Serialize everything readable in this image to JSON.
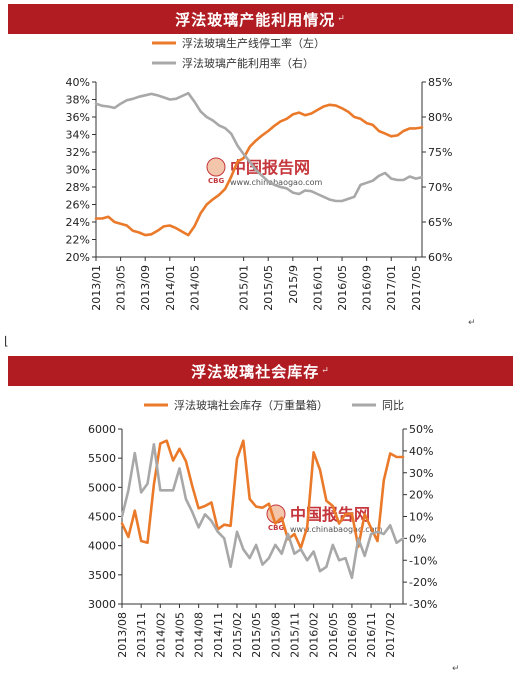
{
  "colors": {
    "orange": "#ea7a2a",
    "gray": "#a8a8a8",
    "title_bg": "#b01c21",
    "watermark": "#c0262b"
  },
  "watermark": {
    "cn": "中国报告网",
    "url": "www.chinabaogao.com",
    "logo": "CBG"
  },
  "charts": [
    {
      "title": "浮法玻璃产能利用情况",
      "legend_position": "top-center",
      "grid": false,
      "x_tick_labels": [
        "2013/01",
        "2013/05",
        "2013/09",
        "2014/01",
        "2014/05",
        "2015/01",
        "2015/05",
        "2015/9",
        "2016/01",
        "2016/05",
        "2016/09",
        "2017/01",
        "2017/05"
      ],
      "left_axis": {
        "ylim": [
          20,
          40
        ],
        "ticks": [
          "20%",
          "22%",
          "24%",
          "26%",
          "28%",
          "30%",
          "32%",
          "34%",
          "36%",
          "38%",
          "40%"
        ]
      },
      "right_axis": {
        "ylim": [
          60,
          85
        ],
        "ticks": [
          "60%",
          "65%",
          "70%",
          "75%",
          "80%",
          "85%"
        ]
      }
    },
    {
      "title": "浮法玻璃社会库存",
      "legend_position": "top-center",
      "grid": false,
      "x_tick_labels": [
        "2013/08",
        "2013/11",
        "2014/02",
        "2014/05",
        "2014/08",
        "2014/11",
        "2015/02",
        "2015/05",
        "2015/08",
        "2015/11",
        "2016/02",
        "2016/05",
        "2016/08",
        "2016/11",
        "2017/02"
      ],
      "left_axis": {
        "ylim": [
          3000,
          6000
        ],
        "ticks": [
          "3000",
          "3500",
          "4000",
          "4500",
          "5000",
          "5500",
          "6000"
        ]
      },
      "right_axis": {
        "ylim": [
          -30,
          50
        ],
        "ticks": [
          "-30%",
          "-20%",
          "-10%",
          "0%",
          "10%",
          "20%",
          "30%",
          "40%",
          "50%"
        ]
      }
    }
  ],
  "chart_data": [
    {
      "type": "line",
      "title": "浮法玻璃产能利用情况",
      "x_range": [
        "2013/01",
        "2017/06"
      ],
      "series": [
        {
          "name": "浮法玻璃生产线停工率（左）",
          "axis": "left",
          "color": "#ea7a2a",
          "x": [
            "2013/01",
            "2013/02",
            "2013/03",
            "2013/04",
            "2013/05",
            "2013/06",
            "2013/07",
            "2013/08",
            "2013/09",
            "2013/10",
            "2013/11",
            "2013/12",
            "2014/01",
            "2014/02",
            "2014/03",
            "2014/04",
            "2014/05",
            "2014/06",
            "2014/07",
            "2014/08",
            "2014/09",
            "2014/10",
            "2014/11",
            "2014/12",
            "2015/01",
            "2015/02",
            "2015/03",
            "2015/04",
            "2015/05",
            "2015/06",
            "2015/07",
            "2015/08",
            "2015/09",
            "2015/10",
            "2015/11",
            "2015/12",
            "2016/01",
            "2016/02",
            "2016/03",
            "2016/04",
            "2016/05",
            "2016/06",
            "2016/07",
            "2016/08",
            "2016/09",
            "2016/10",
            "2016/11",
            "2016/12",
            "2017/01",
            "2017/02",
            "2017/03",
            "2017/04",
            "2017/05",
            "2017/06"
          ],
          "values": [
            24.4,
            24.4,
            24.6,
            24.0,
            23.8,
            23.6,
            23.0,
            22.8,
            22.5,
            22.6,
            23.0,
            23.5,
            23.6,
            23.3,
            22.9,
            22.5,
            23.5,
            25.0,
            26.0,
            26.6,
            27.1,
            27.8,
            29.2,
            30.9,
            31.3,
            32.6,
            33.3,
            33.9,
            34.4,
            35.0,
            35.5,
            35.8,
            36.3,
            36.5,
            36.2,
            36.4,
            36.8,
            37.2,
            37.4,
            37.3,
            37.0,
            36.6,
            36.0,
            35.8,
            35.3,
            35.1,
            34.4,
            34.1,
            33.8,
            33.9,
            34.4,
            34.7,
            34.7,
            34.8
          ]
        },
        {
          "name": "浮法玻璃产能利用率（右）",
          "axis": "right",
          "color": "#a8a8a8",
          "x": [
            "2013/01",
            "2013/02",
            "2013/03",
            "2013/04",
            "2013/05",
            "2013/06",
            "2013/07",
            "2013/08",
            "2013/09",
            "2013/10",
            "2013/11",
            "2013/12",
            "2014/01",
            "2014/02",
            "2014/03",
            "2014/04",
            "2014/05",
            "2014/06",
            "2014/07",
            "2014/08",
            "2014/09",
            "2014/10",
            "2014/11",
            "2014/12",
            "2015/01",
            "2015/02",
            "2015/03",
            "2015/04",
            "2015/05",
            "2015/06",
            "2015/07",
            "2015/08",
            "2015/09",
            "2015/10",
            "2015/11",
            "2015/12",
            "2016/01",
            "2016/02",
            "2016/03",
            "2016/04",
            "2016/05",
            "2016/06",
            "2016/07",
            "2016/08",
            "2016/09",
            "2016/10",
            "2016/11",
            "2016/12",
            "2017/01",
            "2017/02",
            "2017/03",
            "2017/04",
            "2017/05",
            "2017/06"
          ],
          "values": [
            81.9,
            81.6,
            81.5,
            81.3,
            81.9,
            82.4,
            82.6,
            82.9,
            83.1,
            83.3,
            83.1,
            82.8,
            82.5,
            82.6,
            83.0,
            83.4,
            82.2,
            80.8,
            80.0,
            79.5,
            78.8,
            78.4,
            77.6,
            75.9,
            74.7,
            73.6,
            72.4,
            71.6,
            70.8,
            70.3,
            70.0,
            69.8,
            69.2,
            69.0,
            69.5,
            69.4,
            69.0,
            68.6,
            68.2,
            68.0,
            68.0,
            68.3,
            68.6,
            70.3,
            70.6,
            70.9,
            71.6,
            72.0,
            71.2,
            71.0,
            71.0,
            71.5,
            71.2,
            71.4
          ]
        }
      ]
    },
    {
      "type": "line",
      "title": "浮法玻璃社会库存",
      "x_range": [
        "2013/08",
        "2017/04"
      ],
      "series": [
        {
          "name": "浮法玻璃社会库存（万重量箱）",
          "axis": "left",
          "color": "#ea7a2a",
          "x": [
            "2013/08",
            "2013/09",
            "2013/10",
            "2013/11",
            "2013/12",
            "2014/01",
            "2014/02",
            "2014/03",
            "2014/04",
            "2014/05",
            "2014/06",
            "2014/07",
            "2014/08",
            "2014/09",
            "2014/10",
            "2014/11",
            "2014/12",
            "2015/01",
            "2015/02",
            "2015/03",
            "2015/04",
            "2015/05",
            "2015/06",
            "2015/07",
            "2015/08",
            "2015/09",
            "2015/10",
            "2015/11",
            "2015/12",
            "2016/01",
            "2016/02",
            "2016/03",
            "2016/04",
            "2016/05",
            "2016/06",
            "2016/07",
            "2016/08",
            "2016/09",
            "2016/10",
            "2016/11",
            "2016/12",
            "2017/01",
            "2017/02",
            "2017/03",
            "2017/04"
          ],
          "values": [
            4380,
            4150,
            4600,
            4080,
            4050,
            5050,
            5750,
            5800,
            5460,
            5660,
            5450,
            5020,
            4640,
            4680,
            4740,
            4280,
            4360,
            4340,
            5490,
            5800,
            4800,
            4670,
            4650,
            4720,
            4380,
            4480,
            4110,
            4200,
            3960,
            4320,
            5600,
            5300,
            4770,
            4680,
            4380,
            4540,
            4550,
            3980,
            4540,
            4300,
            4080,
            5120,
            5580,
            5520,
            5520
          ]
        },
        {
          "name": "同比",
          "axis": "right",
          "color": "#a8a8a8",
          "x": [
            "2013/08",
            "2013/09",
            "2013/10",
            "2013/11",
            "2013/12",
            "2014/01",
            "2014/02",
            "2014/03",
            "2014/04",
            "2014/05",
            "2014/06",
            "2014/07",
            "2014/08",
            "2014/09",
            "2014/10",
            "2014/11",
            "2014/12",
            "2015/01",
            "2015/02",
            "2015/03",
            "2015/04",
            "2015/05",
            "2015/06",
            "2015/07",
            "2015/08",
            "2015/09",
            "2015/10",
            "2015/11",
            "2015/12",
            "2016/01",
            "2016/02",
            "2016/03",
            "2016/04",
            "2016/05",
            "2016/06",
            "2016/07",
            "2016/08",
            "2016/09",
            "2016/10",
            "2016/11",
            "2016/12",
            "2017/01",
            "2017/02",
            "2017/03",
            "2017/04"
          ],
          "values": [
            10,
            22,
            39,
            21,
            25,
            43,
            22,
            22,
            22,
            32,
            18,
            12,
            5,
            11,
            8,
            3,
            0,
            -13,
            3,
            -5,
            -9,
            -3,
            -12,
            -9,
            -3,
            -7,
            2,
            -7,
            -5,
            -10,
            -6,
            -15,
            -13,
            -3,
            -10,
            -9,
            -18,
            0,
            -8,
            2,
            3,
            2,
            6,
            -2,
            0
          ]
        }
      ]
    }
  ]
}
